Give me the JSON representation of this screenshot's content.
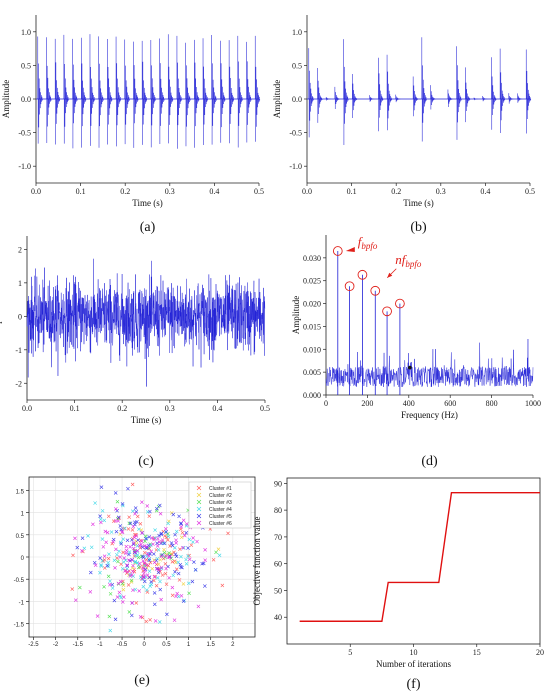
{
  "chart_data": [
    {
      "id": "a",
      "type": "line",
      "caption": "(a)",
      "xlabel": "Time (s)",
      "ylabel": "Amplitude",
      "xlim": [
        0,
        0.5
      ],
      "ylim": [
        -1.25,
        1.25
      ],
      "xticks": [
        "0.0",
        "0.1",
        "0.2",
        "0.3",
        "0.4",
        "0.5"
      ],
      "yticks": [
        "-1.0",
        "-0.5",
        "0.0",
        "0.5",
        "1.0"
      ],
      "series": [
        {
          "signal": "periodic impulses",
          "impulse_period": 0.0195,
          "first_impulse": 0.004,
          "peak_amplitude": 0.98,
          "color": "#1f1fd6"
        }
      ]
    },
    {
      "id": "b",
      "type": "line",
      "caption": "(b)",
      "xlabel": "Time (s)",
      "ylabel": "Amplitude",
      "xlim": [
        0,
        0.5
      ],
      "ylim": [
        -1.25,
        1.25
      ],
      "xticks": [
        "0.0",
        "0.1",
        "0.2",
        "0.3",
        "0.4",
        "0.5"
      ],
      "yticks": [
        "-1.0",
        "-0.5",
        "0.0",
        "0.5",
        "1.0"
      ],
      "series": [
        {
          "signal": "amplitude-modulated impulse groups",
          "impulse_period": 0.0195,
          "group_centers": [
            0.085,
            0.17,
            0.255,
            0.34,
            0.425
          ],
          "partial_groups": [
            0.01,
            0.5
          ],
          "peak_amplitude": 0.95,
          "color": "#1f1fd6"
        }
      ]
    },
    {
      "id": "c",
      "type": "line",
      "caption": "(c)",
      "xlabel": "Time (s)",
      "ylabel": "Amplitude",
      "xlim": [
        0,
        0.5
      ],
      "ylim": [
        -2.5,
        2.4
      ],
      "xticks": [
        "0.0",
        "0.1",
        "0.2",
        "0.3",
        "0.4",
        "0.5"
      ],
      "yticks": [
        "-2",
        "-1",
        "0",
        "1",
        "2"
      ],
      "series": [
        {
          "signal": "noisy mixture",
          "typical_amplitude": 0.7,
          "max_amplitude": 2.1,
          "color": "#1f1fd6"
        }
      ]
    },
    {
      "id": "d",
      "type": "line",
      "caption": "(d)",
      "xlabel": "Frequency (Hz)",
      "ylabel": "Amplitude",
      "xlim": [
        0,
        1000
      ],
      "ylim": [
        0,
        0.035
      ],
      "xticks": [
        "0",
        "200",
        "400",
        "600",
        "800",
        "1000"
      ],
      "yticks": [
        "0.000",
        "0.005",
        "0.010",
        "0.015",
        "0.020",
        "0.025",
        "0.030"
      ],
      "peaks": [
        {
          "x": 57,
          "y": 0.0315
        },
        {
          "x": 114,
          "y": 0.0238
        },
        {
          "x": 176,
          "y": 0.0263
        },
        {
          "x": 238,
          "y": 0.0228
        },
        {
          "x": 295,
          "y": 0.0183
        },
        {
          "x": 357,
          "y": 0.02
        }
      ],
      "noise_floor": 0.005,
      "annotations": [
        {
          "text_main": "f",
          "text_sub": "bpfo"
        },
        {
          "text_main": "nf",
          "text_sub": "bpfo"
        }
      ],
      "color": "#1f1fd6",
      "marker_color": "#e0201a"
    },
    {
      "id": "e",
      "type": "scatter",
      "caption": "(e)",
      "xlim": [
        -2.6,
        2.5
      ],
      "ylim": [
        -1.8,
        1.8
      ],
      "xticks": [
        "-2.5",
        "-2",
        "-1.5",
        "-1",
        "-0.5",
        "0",
        "0.5",
        "1",
        "1.5",
        "2"
      ],
      "yticks": [
        "-1.5",
        "-1",
        "-0.5",
        "0",
        "0.5",
        "1",
        "1.5"
      ],
      "grid": true,
      "legend_position": "top-right",
      "series": [
        {
          "name": "Cluster #1",
          "color": "#ff5a5a",
          "n": 90
        },
        {
          "name": "Cluster #2",
          "color": "#f0d040",
          "n": 25
        },
        {
          "name": "Cluster #3",
          "color": "#50e050",
          "n": 35
        },
        {
          "name": "Cluster #4",
          "color": "#40d8e8",
          "n": 90
        },
        {
          "name": "Cluster #5",
          "color": "#3a3ae8",
          "n": 100
        },
        {
          "name": "Cluster #6",
          "color": "#e030e0",
          "n": 120
        }
      ]
    },
    {
      "id": "f",
      "type": "line",
      "caption": "(f)",
      "xlabel": "Number of iterations",
      "ylabel": "Objective function value",
      "xlim": [
        0,
        20
      ],
      "ylim": [
        30,
        92
      ],
      "xticks": [
        "5",
        "10",
        "15",
        "20"
      ],
      "yticks": [
        "40",
        "50",
        "60",
        "70",
        "80",
        "90"
      ],
      "series": [
        {
          "x": [
            1,
            7.5,
            8,
            12,
            13,
            20
          ],
          "y": [
            38.5,
            38.5,
            53,
            53,
            86.5,
            86.5
          ],
          "color": "#e01010"
        }
      ]
    }
  ]
}
